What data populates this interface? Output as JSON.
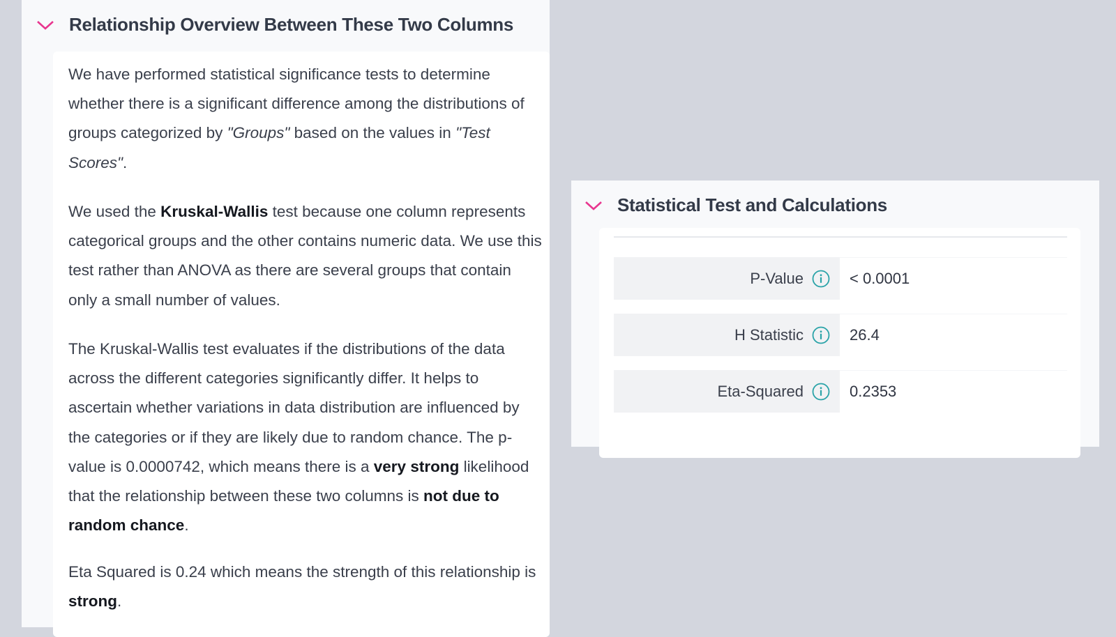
{
  "colors": {
    "accent": "#e8368f",
    "info": "#2aa3a8",
    "background": "#d3d6de"
  },
  "overview": {
    "title": "Relationship Overview Between These Two Columns",
    "icon": "chevron-down-icon",
    "paragraphs": [
      [
        {
          "t": "We have performed statistical significance tests to determine whether there is a significant difference among the distributions of groups categorized by "
        },
        {
          "t": "\"Groups\"",
          "i": true
        },
        {
          "t": " based on the values in "
        },
        {
          "t": "\"Test Scores\"",
          "i": true
        },
        {
          "t": "."
        }
      ],
      [
        {
          "t": "We used the "
        },
        {
          "t": "Kruskal-Wallis",
          "b": true
        },
        {
          "t": " test because one column represents categorical groups and the other contains numeric data. We use this test rather than ANOVA as there are several groups that contain only a small number of values."
        }
      ],
      [
        {
          "t": "The Kruskal-Wallis test evaluates if the distributions of the data across the different categories significantly differ. It helps to ascertain whether variations in data distribution are influenced by the categories or if they are likely due to random chance. The p-value is 0.0000742, which means there is a "
        },
        {
          "t": "very strong",
          "b": true
        },
        {
          "t": " likelihood that the relationship between these two columns is "
        },
        {
          "t": "not due to random chance",
          "b": true
        },
        {
          "t": "."
        }
      ],
      [
        {
          "t": "Eta Squared is 0.24 which means the strength of this relationship is "
        },
        {
          "t": "strong",
          "b": true
        },
        {
          "t": "."
        }
      ]
    ]
  },
  "stats": {
    "title": "Statistical Test and Calculations",
    "icon": "chevron-down-icon",
    "rows": [
      {
        "label": "P-Value",
        "value": "< 0.0001",
        "icon": "info-icon"
      },
      {
        "label": "H Statistic",
        "value": "26.4",
        "icon": "info-icon"
      },
      {
        "label": "Eta-Squared",
        "value": "0.2353",
        "icon": "info-icon"
      }
    ]
  }
}
